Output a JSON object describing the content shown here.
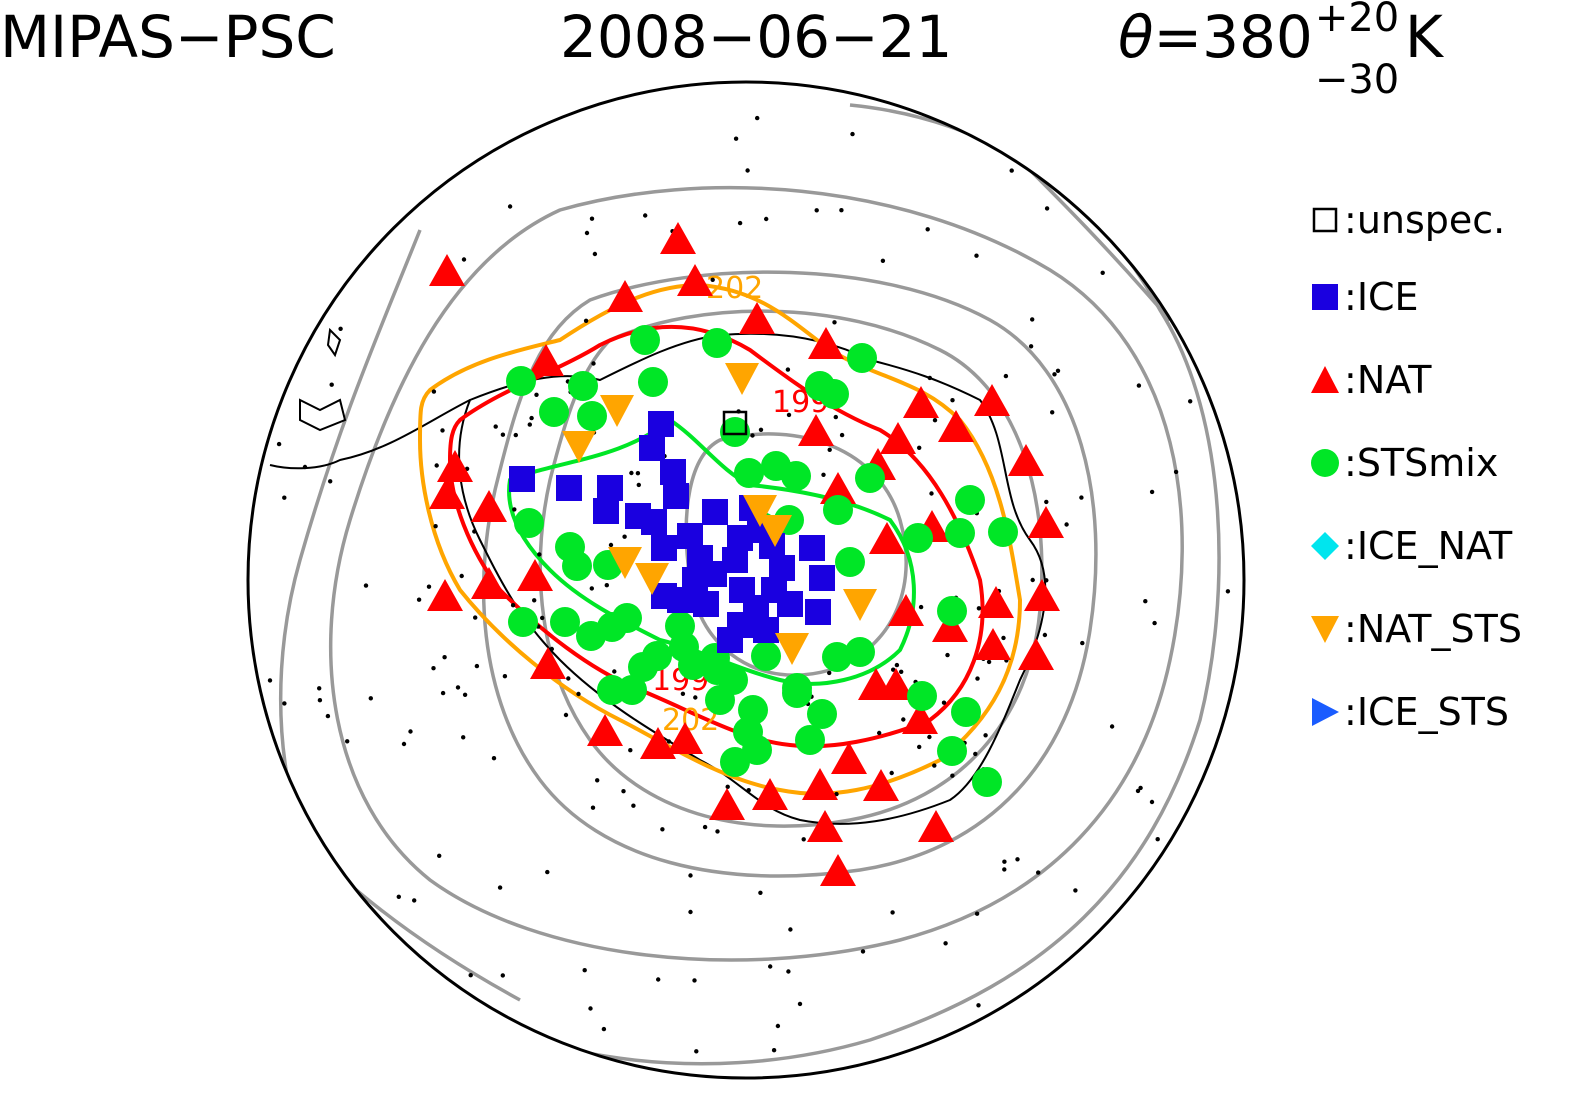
{
  "header": {
    "instrument": "MIPAS−PSC",
    "date": "2008−06−21",
    "theta_symbol": "θ",
    "theta_value": "=380",
    "theta_upper": "+20",
    "theta_lower": "−30",
    "theta_unit": "K"
  },
  "contour_labels": {
    "orange_top": "202",
    "red_top": "199",
    "red_bottom": "199",
    "orange_bottom": "202"
  },
  "legend": {
    "items": [
      {
        "label": "unspec.",
        "symbol": "open-square",
        "color": "#000000"
      },
      {
        "label": "ICE",
        "symbol": "square",
        "color": "#1a00e0"
      },
      {
        "label": "NAT",
        "symbol": "triangle-up",
        "color": "#ff0000"
      },
      {
        "label": "STSmix",
        "symbol": "circle",
        "color": "#00e626"
      },
      {
        "label": "ICE_NAT",
        "symbol": "diamond",
        "color": "#00e5ee"
      },
      {
        "label": "NAT_STS",
        "symbol": "triangle-down",
        "color": "#ffa500"
      },
      {
        "label": "ICE_STS",
        "symbol": "triangle-right",
        "color": "#1a5cff"
      }
    ]
  },
  "colors": {
    "ice": "#1a00e0",
    "nat": "#ff0000",
    "sts": "#00e626",
    "nat_sts": "#ffa500",
    "contour_gray": "#999999",
    "contour_orange": "#ffa500",
    "contour_red": "#ff0000",
    "contour_green": "#00e626"
  }
}
